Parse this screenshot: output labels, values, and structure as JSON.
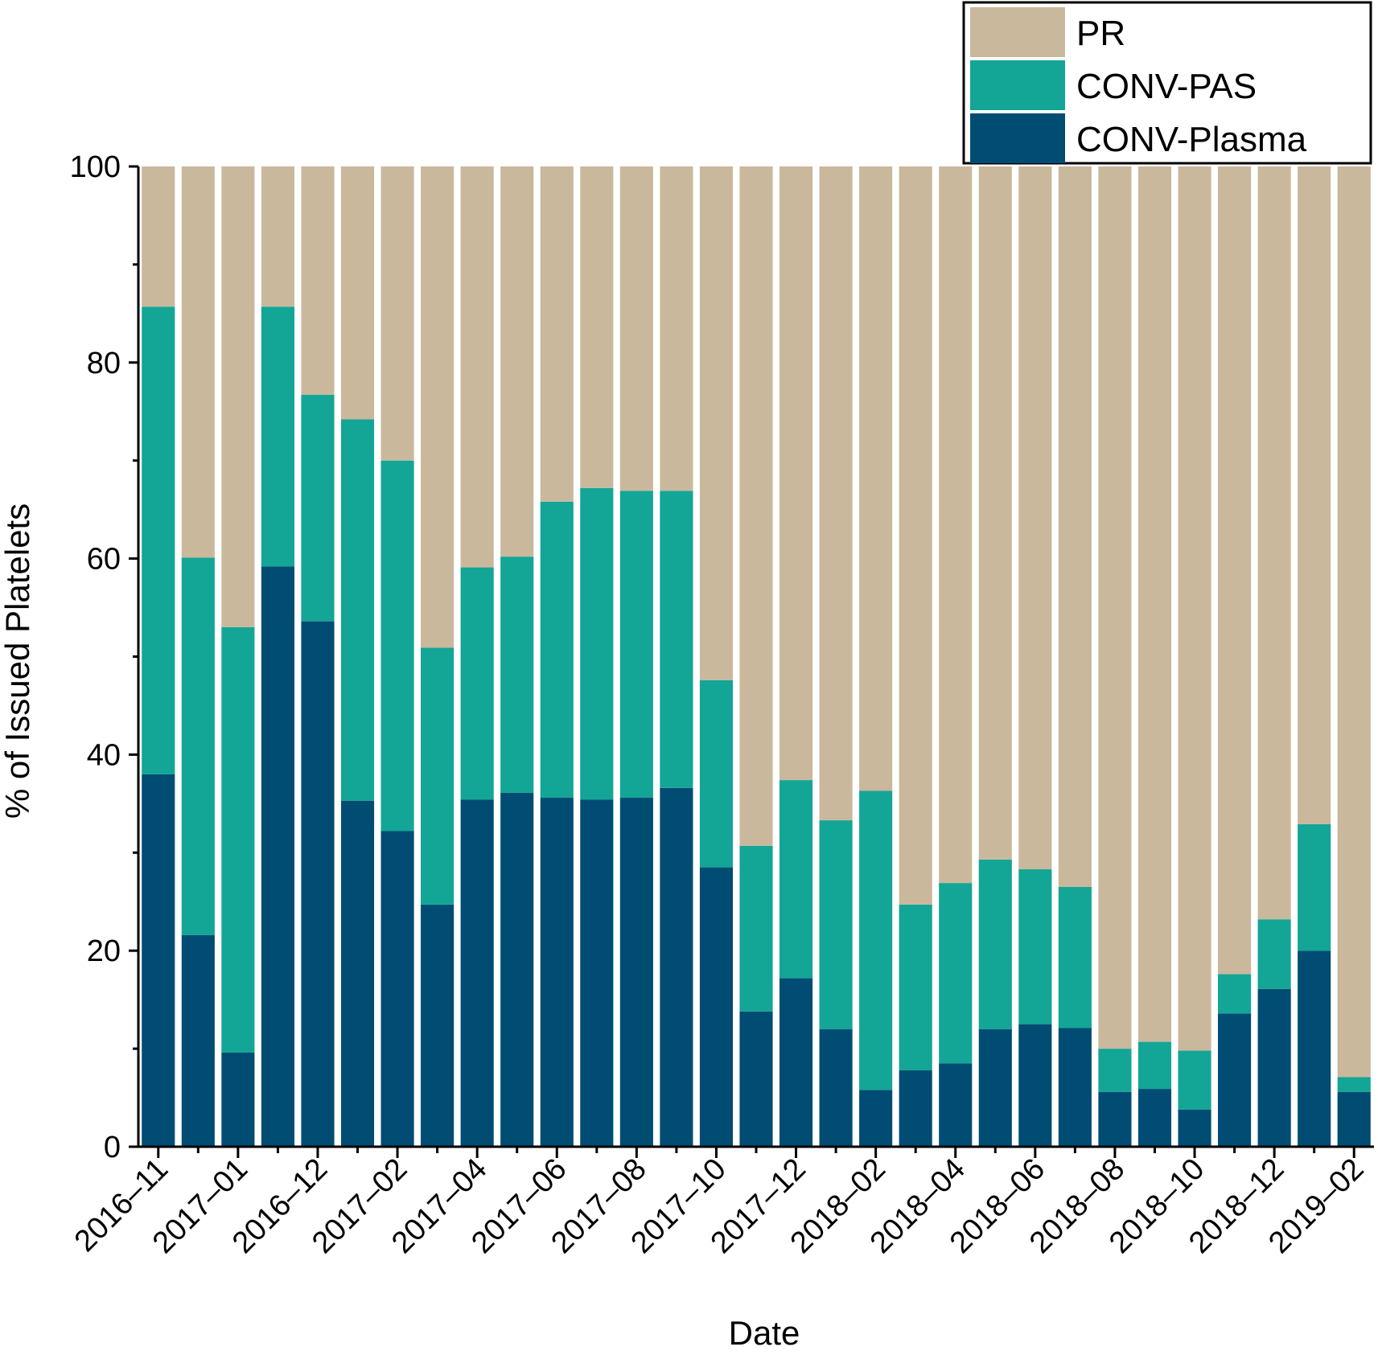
{
  "chart_data": {
    "type": "bar",
    "stacked": true,
    "xlabel": "Date",
    "ylabel": "% of Issued Platelets",
    "ylim": [
      0,
      100
    ],
    "yticks": [
      0,
      20,
      40,
      60,
      80,
      100
    ],
    "grid": false,
    "legend_position": "top-right",
    "x_tick_labels": [
      "2016–11",
      "2017–01",
      "2016–12",
      "2017–02",
      "2017–04",
      "2017–06",
      "2017–08",
      "2017–10",
      "2017–12",
      "2018–02",
      "2018–04",
      "2018–06",
      "2018–08",
      "2018–10",
      "2018–12",
      "2019–02"
    ],
    "bar_count": 31,
    "series": [
      {
        "name": "CONV-Plasma",
        "color": "#004c73",
        "values": [
          38,
          21.6,
          9.6,
          59.2,
          53.6,
          35.3,
          32.2,
          24.7,
          35.4,
          36.1,
          35.6,
          35.4,
          35.6,
          36.6,
          28.5,
          13.8,
          17.2,
          12,
          5.8,
          7.8,
          8.5,
          12,
          12.5,
          12.1,
          5.6,
          5.9,
          3.8,
          13.6,
          16.1,
          20,
          5.6
        ]
      },
      {
        "name": "CONV-PAS",
        "color": "#13a596",
        "values": [
          47.7,
          38.5,
          43.4,
          26.5,
          23.1,
          38.9,
          37.8,
          26.2,
          23.7,
          24.1,
          30.2,
          31.8,
          31.3,
          30.3,
          19.1,
          16.9,
          20.2,
          21.3,
          30.5,
          16.9,
          18.4,
          17.3,
          15.8,
          14.4,
          4.4,
          4.8,
          6,
          4,
          7.1,
          12.9,
          1.5
        ]
      },
      {
        "name": "PR",
        "color": "#cab89d",
        "values": [
          14.3,
          39.9,
          47,
          14.3,
          23.3,
          25.8,
          30,
          49.1,
          40.9,
          39.8,
          34.2,
          32.8,
          33.1,
          33.1,
          52.4,
          69.3,
          62.6,
          66.7,
          63.7,
          75.3,
          73.1,
          70.7,
          71.7,
          73.5,
          90,
          89.3,
          90.2,
          82.4,
          76.8,
          67.1,
          92.9
        ]
      }
    ],
    "legend_order": [
      "PR",
      "CONV-PAS",
      "CONV-Plasma"
    ]
  }
}
